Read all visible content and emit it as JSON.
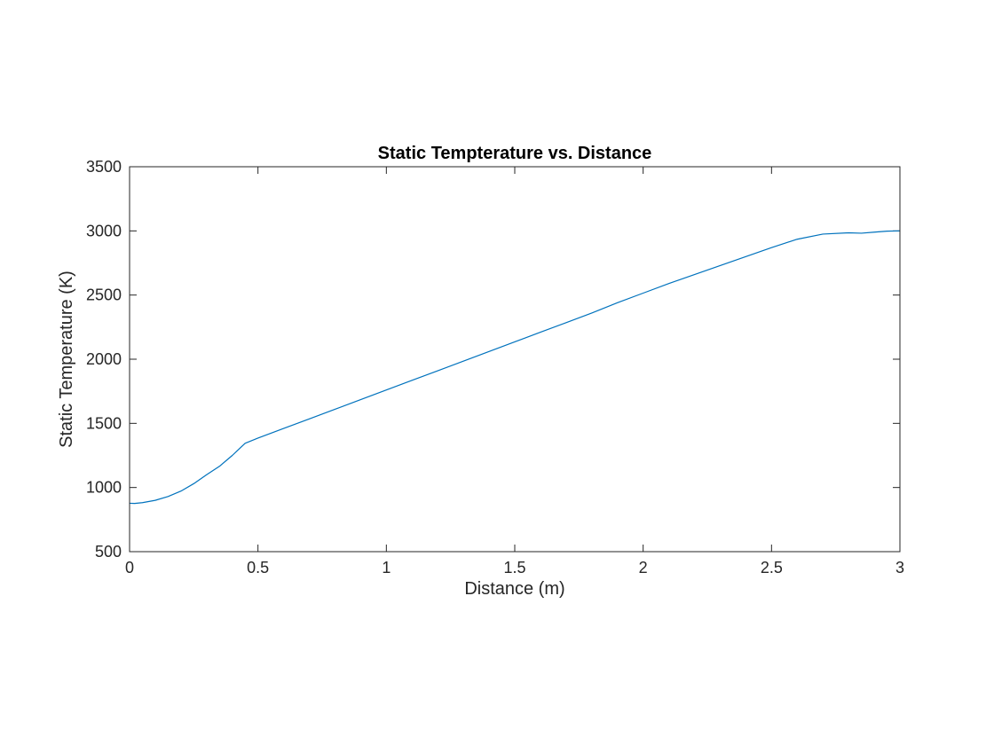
{
  "chart_data": {
    "type": "line",
    "title": "Static Tempterature vs. Distance",
    "xlabel": "Distance (m)",
    "ylabel": "Static Temperature (K)",
    "xlim": [
      0,
      3
    ],
    "ylim": [
      500,
      3500
    ],
    "x_ticks": [
      "0",
      "0.5",
      "1",
      "1.5",
      "2",
      "2.5",
      "3"
    ],
    "y_ticks": [
      "500",
      "1000",
      "1500",
      "2000",
      "2500",
      "3000",
      "3500"
    ],
    "grid": false,
    "legend": "none",
    "series": [
      {
        "color": "#0072BD",
        "x": [
          0,
          0.02,
          0.05,
          0.1,
          0.15,
          0.2,
          0.25,
          0.3,
          0.35,
          0.4,
          0.45,
          0.5,
          0.6,
          0.7,
          0.8,
          0.9,
          1.0,
          1.1,
          1.2,
          1.3,
          1.4,
          1.5,
          1.6,
          1.7,
          1.8,
          1.9,
          2.0,
          2.1,
          2.2,
          2.3,
          2.4,
          2.5,
          2.6,
          2.7,
          2.8,
          2.85,
          2.9,
          2.95,
          3.0
        ],
        "y": [
          877,
          876,
          882,
          900,
          930,
          972,
          1030,
          1100,
          1165,
          1250,
          1345,
          1385,
          1460,
          1535,
          1610,
          1685,
          1760,
          1835,
          1910,
          1985,
          2060,
          2135,
          2210,
          2285,
          2360,
          2440,
          2515,
          2590,
          2660,
          2730,
          2800,
          2870,
          2935,
          2975,
          2985,
          2982,
          2990,
          2998,
          3000
        ]
      }
    ]
  }
}
